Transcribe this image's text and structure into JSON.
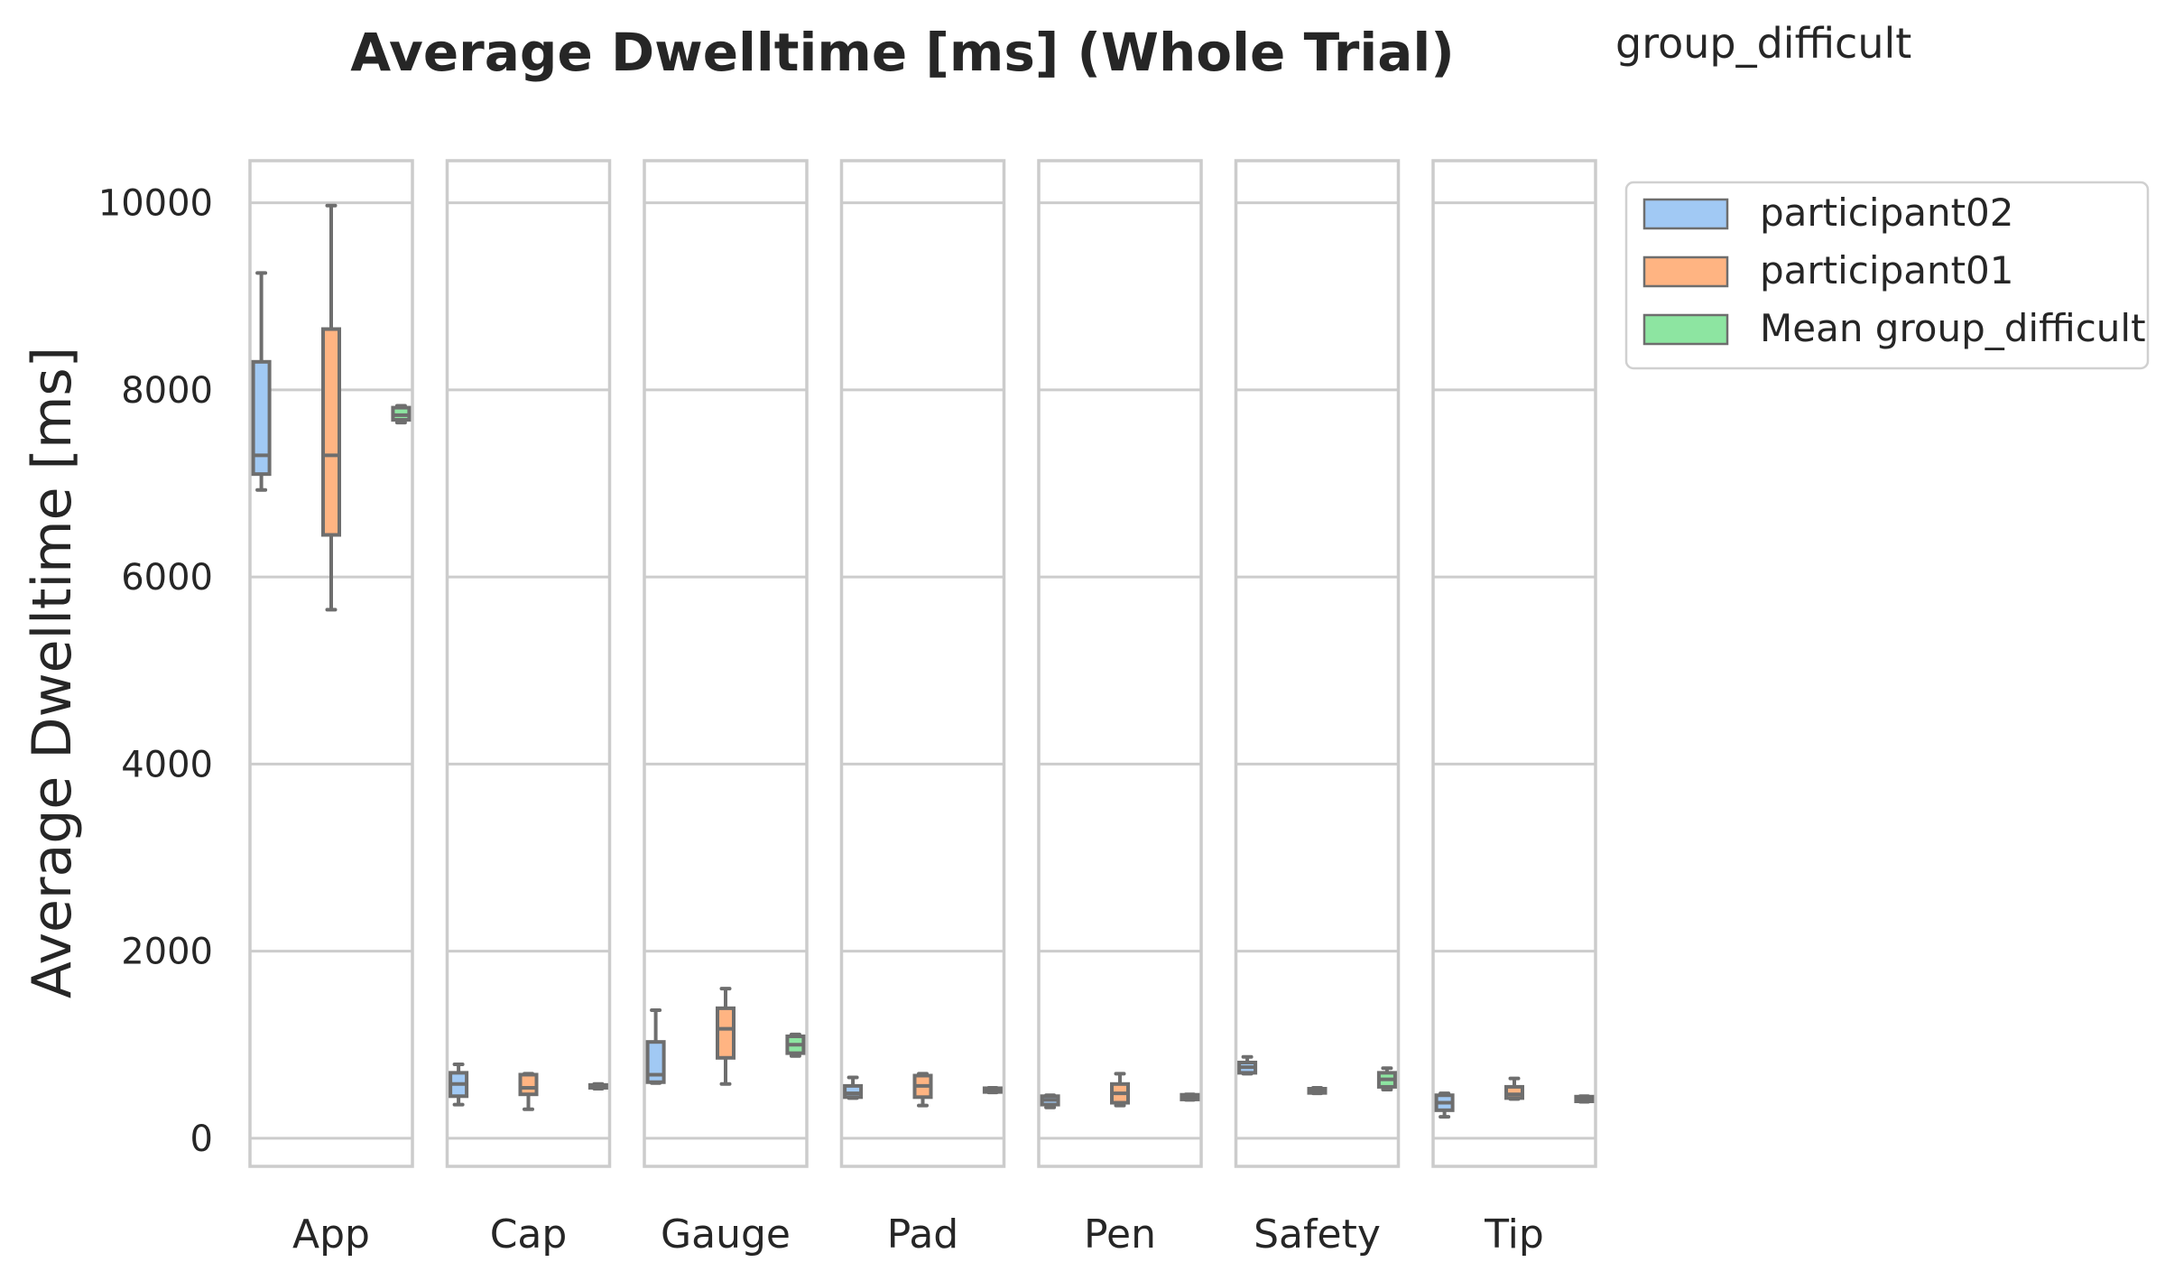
{
  "chart_data": {
    "type": "box",
    "title": "Average Dwelltime [ms] (Whole Trial)",
    "group_label": "group_difficult",
    "ylabel": "Average Dwelltime [ms]",
    "ylim": [
      -300,
      10450
    ],
    "yticks": [
      0,
      2000,
      4000,
      6000,
      8000,
      10000
    ],
    "grid": true,
    "legend_position": "outside-right",
    "series": [
      {
        "name": "participant02",
        "color": "#a1c9f4"
      },
      {
        "name": "participant01",
        "color": "#ffb482"
      },
      {
        "name": "Mean group_difficult",
        "color": "#8de5a1"
      }
    ],
    "categories": [
      "App",
      "Cap",
      "Gauge",
      "Pad",
      "Pen",
      "Safety",
      "Tip"
    ],
    "boxes": [
      [
        {
          "min": 6930,
          "q1": 7100,
          "median": 7300,
          "q3": 8300,
          "max": 9250
        },
        {
          "min": 5650,
          "q1": 6450,
          "median": 7300,
          "q3": 8650,
          "max": 9970
        },
        {
          "min": 7650,
          "q1": 7680,
          "median": 7730,
          "q3": 7810,
          "max": 7830
        }
      ],
      [
        {
          "min": 360,
          "q1": 450,
          "median": 580,
          "q3": 700,
          "max": 790
        },
        {
          "min": 310,
          "q1": 470,
          "median": 540,
          "q3": 680,
          "max": 690
        },
        {
          "min": 530,
          "q1": 540,
          "median": 555,
          "q3": 570,
          "max": 580
        }
      ],
      [
        {
          "min": 590,
          "q1": 600,
          "median": 680,
          "q3": 1030,
          "max": 1370
        },
        {
          "min": 580,
          "q1": 860,
          "median": 1170,
          "q3": 1390,
          "max": 1600
        },
        {
          "min": 880,
          "q1": 910,
          "median": 1000,
          "q3": 1090,
          "max": 1110
        }
      ],
      [
        {
          "min": 430,
          "q1": 440,
          "median": 480,
          "q3": 560,
          "max": 650
        },
        {
          "min": 350,
          "q1": 440,
          "median": 560,
          "q3": 670,
          "max": 690
        },
        {
          "min": 490,
          "q1": 495,
          "median": 515,
          "q3": 535,
          "max": 540
        }
      ],
      [
        {
          "min": 330,
          "q1": 360,
          "median": 410,
          "q3": 450,
          "max": 460
        },
        {
          "min": 350,
          "q1": 380,
          "median": 480,
          "q3": 580,
          "max": 690
        },
        {
          "min": 410,
          "q1": 415,
          "median": 440,
          "q3": 465,
          "max": 470
        }
      ],
      [
        {
          "min": 690,
          "q1": 700,
          "median": 760,
          "q3": 810,
          "max": 870
        },
        {
          "min": 480,
          "q1": 485,
          "median": 505,
          "q3": 530,
          "max": 540
        },
        {
          "min": 520,
          "q1": 550,
          "median": 630,
          "q3": 700,
          "max": 750
        }
      ],
      [
        {
          "min": 230,
          "q1": 300,
          "median": 380,
          "q3": 460,
          "max": 480
        },
        {
          "min": 420,
          "q1": 430,
          "median": 470,
          "q3": 550,
          "max": 640
        },
        {
          "min": 390,
          "q1": 395,
          "median": 420,
          "q3": 445,
          "max": 450
        }
      ]
    ]
  }
}
